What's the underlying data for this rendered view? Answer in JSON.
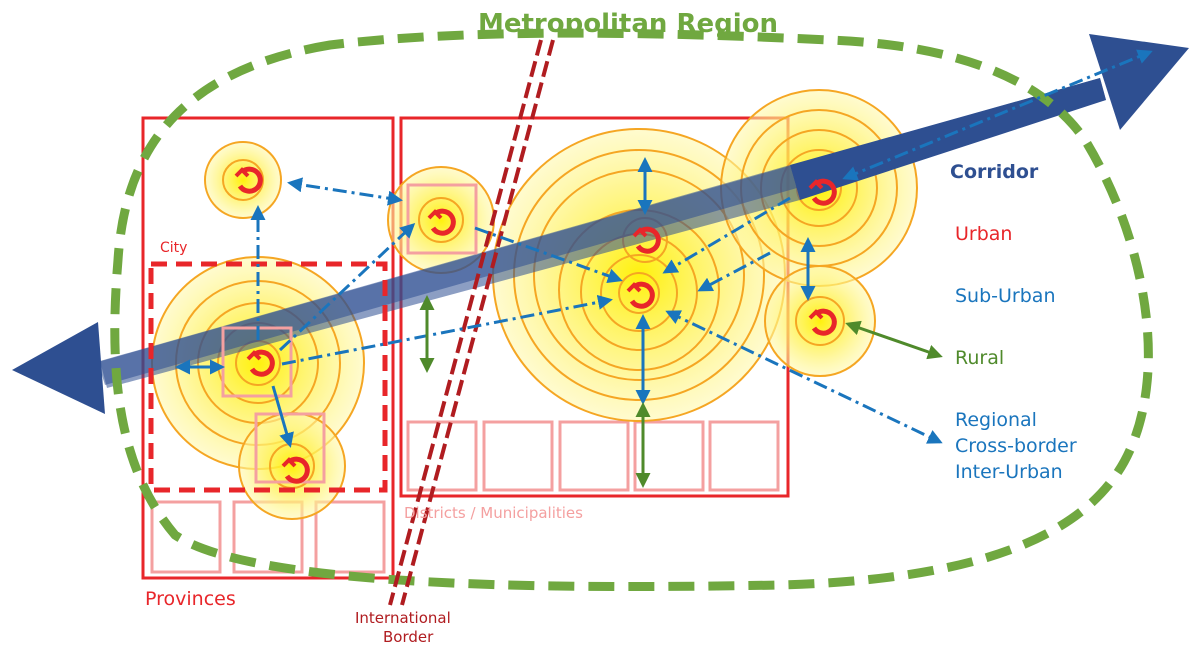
{
  "title": "Metropolitan Region",
  "labels": {
    "city": "City",
    "provinces": "Provinces",
    "districts": "Districts / Municipalities",
    "border_line1": "International",
    "border_line2": "Border"
  },
  "legend": {
    "corridor": "Corridor",
    "urban": "Urban",
    "sub_urban": "Sub-Urban",
    "rural": "Rural",
    "regional_line1": "Regional",
    "regional_line2": "Cross-border",
    "regional_line3": "Inter-Urban"
  },
  "colors": {
    "green": "#70a840",
    "red": "#e8262a",
    "dark_red": "#b01c20",
    "pink": "#f4a0a0",
    "navy": "#2e4f91",
    "blue": "#1a75bd",
    "rural_green": "#4f8a2b",
    "yellow": "#fff35a",
    "orange": "#f5a623"
  }
}
